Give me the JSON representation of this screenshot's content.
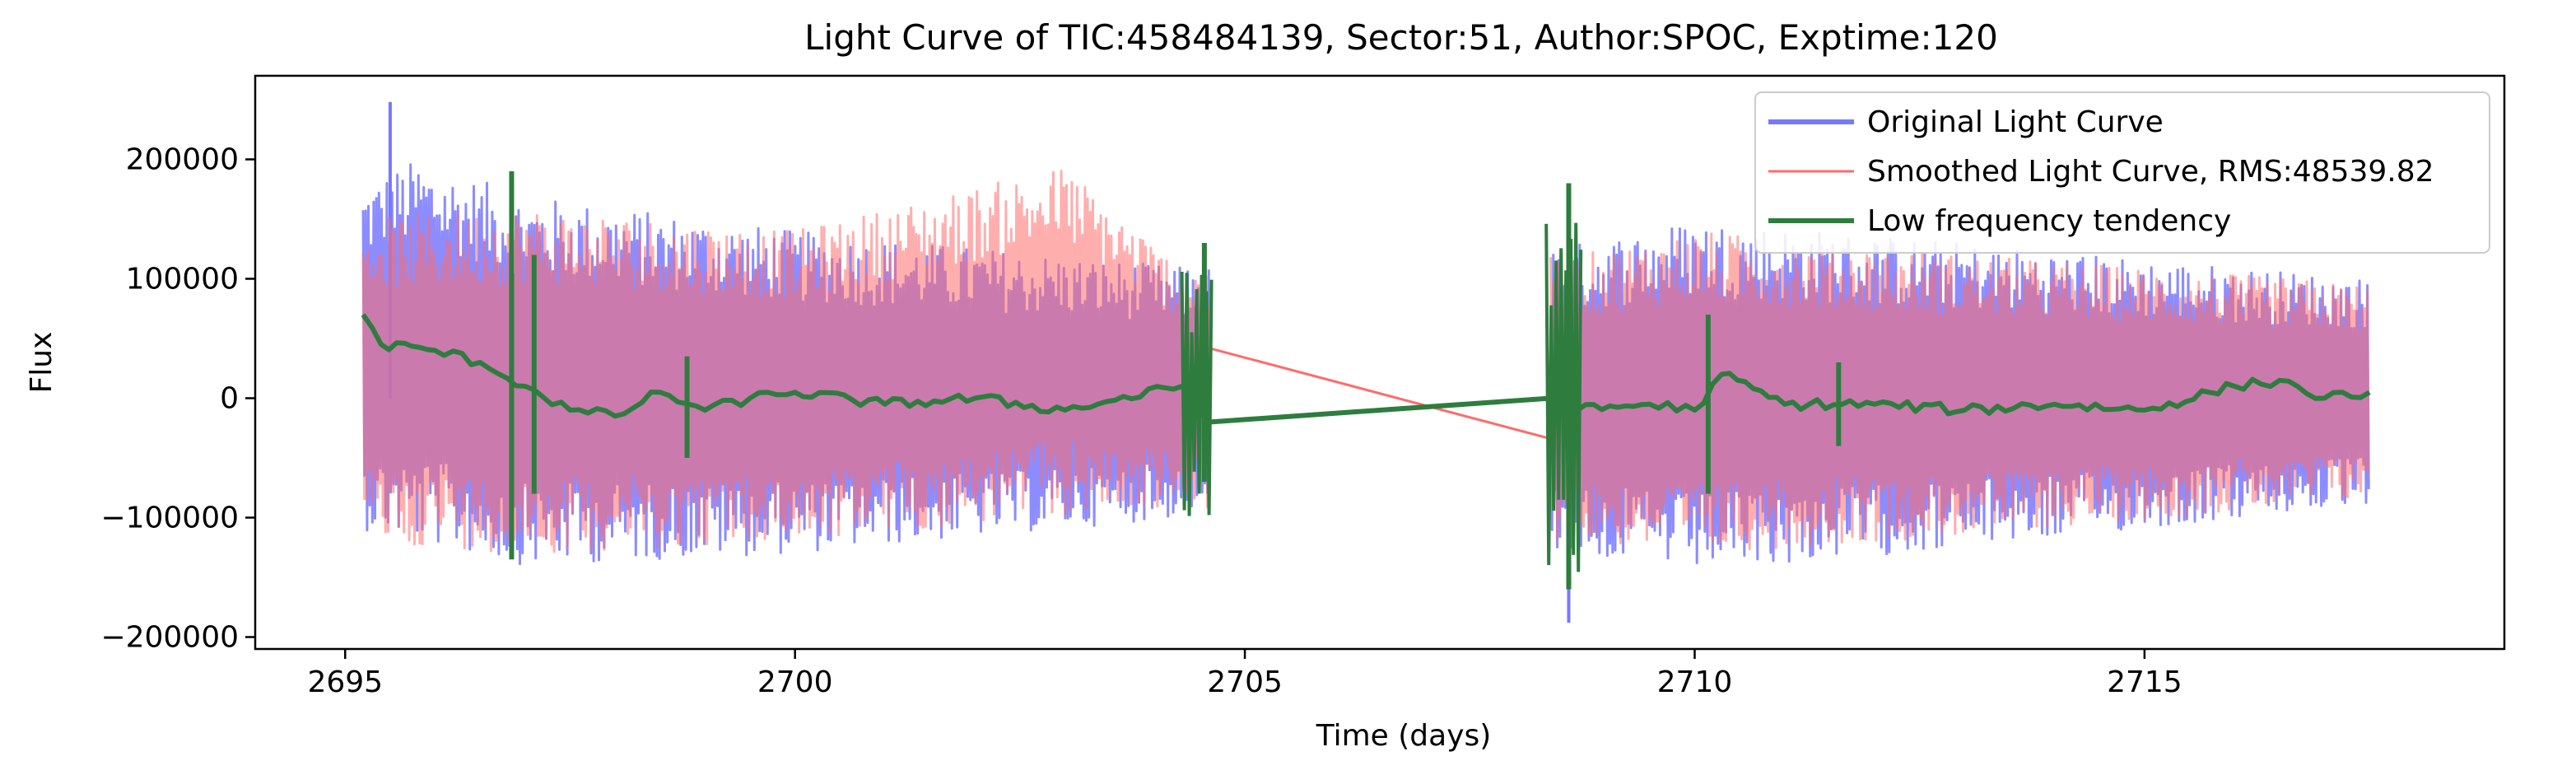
{
  "chart_data": {
    "type": "line",
    "title": "Light Curve of TIC:458484139, Sector:51, Author:SPOC, Exptime:120",
    "xlabel": "Time (days)",
    "ylabel": "Flux",
    "xlim": [
      2694.0,
      2719.0
    ],
    "ylim": [
      -210000,
      270000
    ],
    "xticks": [
      2695,
      2700,
      2705,
      2710,
      2715
    ],
    "xtick_labels": [
      "2695",
      "2700",
      "2705",
      "2710",
      "2715"
    ],
    "yticks": [
      -200000,
      -100000,
      0,
      100000,
      200000
    ],
    "ytick_labels": [
      "−200000",
      "−100000",
      "0",
      "100000",
      "200000"
    ],
    "grid": false,
    "legend_position": "top-right",
    "segments": [
      [
        2695.2,
        2704.6
      ],
      [
        2708.4,
        2717.5
      ]
    ],
    "series": [
      {
        "name": "Original Light Curve",
        "color": "#7878ff",
        "style": "noise-band",
        "band_low": [
          [
            2695.2,
            -110000
          ],
          [
            2697.0,
            -140000
          ],
          [
            2700.0,
            -130000
          ],
          [
            2704.3,
            -100000
          ],
          [
            2708.7,
            -130000
          ],
          [
            2710.0,
            -145000
          ],
          [
            2713.0,
            -125000
          ],
          [
            2717.5,
            -90000
          ]
        ],
        "band_high": [
          [
            2695.2,
            180000
          ],
          [
            2695.8,
            200000
          ],
          [
            2697.0,
            170000
          ],
          [
            2700.0,
            140000
          ],
          [
            2704.3,
            110000
          ],
          [
            2708.7,
            130000
          ],
          [
            2710.0,
            150000
          ],
          [
            2713.0,
            130000
          ],
          [
            2717.5,
            100000
          ]
        ],
        "peak_max": [
          2695.5,
          248000
        ],
        "trough_min": [
          2708.6,
          -188000
        ]
      },
      {
        "name": "Smoothed Light Curve, RMS:48539.82",
        "color": "#ff6b6b",
        "style": "noise-band",
        "band_low": [
          [
            2695.2,
            -120000
          ],
          [
            2697.0,
            -130000
          ],
          [
            2700.0,
            -120000
          ],
          [
            2704.3,
            -90000
          ],
          [
            2708.7,
            -120000
          ],
          [
            2710.0,
            -130000
          ],
          [
            2713.0,
            -115000
          ],
          [
            2717.5,
            -85000
          ]
        ],
        "band_high": [
          [
            2695.2,
            150000
          ],
          [
            2697.0,
            160000
          ],
          [
            2700.0,
            140000
          ],
          [
            2703.0,
            195000
          ],
          [
            2704.3,
            110000
          ],
          [
            2708.7,
            120000
          ],
          [
            2710.0,
            140000
          ],
          [
            2713.0,
            120000
          ],
          [
            2717.5,
            95000
          ]
        ],
        "gap_line": [
          [
            2704.3,
            48000
          ],
          [
            2708.7,
            -40000
          ]
        ]
      },
      {
        "name": "Low frequency tendency",
        "color": "#2e7d3e",
        "style": "trend",
        "points": [
          [
            2695.2,
            70000
          ],
          [
            2695.4,
            45000
          ],
          [
            2696.0,
            40000
          ],
          [
            2696.5,
            30000
          ],
          [
            2697.0,
            10000
          ],
          [
            2697.5,
            -10000
          ],
          [
            2698.0,
            -15000
          ],
          [
            2698.5,
            5000
          ],
          [
            2699.0,
            -10000
          ],
          [
            2699.5,
            0
          ],
          [
            2700.0,
            5000
          ],
          [
            2701.0,
            -5000
          ],
          [
            2702.0,
            0
          ],
          [
            2703.0,
            -10000
          ],
          [
            2704.3,
            10000
          ],
          [
            2704.6,
            -20000
          ],
          [
            2708.4,
            0
          ],
          [
            2708.7,
            -10000
          ],
          [
            2709.5,
            -5000
          ],
          [
            2710.0,
            -10000
          ],
          [
            2710.3,
            20000
          ],
          [
            2711.0,
            -5000
          ],
          [
            2712.0,
            -5000
          ],
          [
            2713.0,
            -10000
          ],
          [
            2714.0,
            -5000
          ],
          [
            2715.0,
            -10000
          ],
          [
            2716.0,
            10000
          ],
          [
            2716.5,
            15000
          ],
          [
            2717.0,
            0
          ],
          [
            2717.5,
            5000
          ]
        ],
        "spikes": [
          [
            2696.85,
            190000,
            -135000
          ],
          [
            2697.1,
            120000,
            -80000
          ],
          [
            2698.8,
            35000,
            -50000
          ],
          [
            2711.6,
            30000,
            -40000
          ],
          [
            2710.15,
            70000,
            -80000
          ],
          [
            2704.55,
            130000,
            -70000
          ],
          [
            2708.6,
            180000,
            -160000
          ]
        ]
      }
    ]
  }
}
